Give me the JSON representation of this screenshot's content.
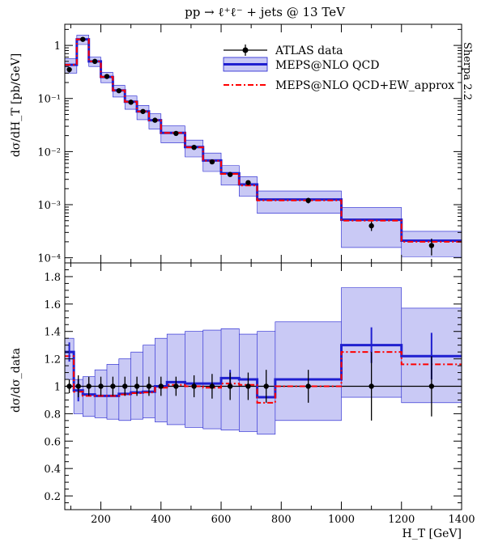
{
  "chart_data": {
    "type": "line",
    "title": "pp → ℓ⁺ℓ⁻ + jets @ 13 TeV",
    "generator_label": "Sherpa 2.2",
    "x_label": "H_T [GeV]",
    "xlim": [
      80,
      1400
    ],
    "x_ticks": [
      200,
      400,
      600,
      800,
      1000,
      1200,
      1400
    ],
    "bin_edges": [
      80,
      110,
      140,
      180,
      220,
      260,
      300,
      340,
      380,
      420,
      480,
      540,
      600,
      660,
      720,
      780,
      1000,
      1200,
      1400
    ],
    "bin_centers": [
      95,
      125,
      160,
      200,
      240,
      280,
      320,
      360,
      400,
      450,
      510,
      570,
      630,
      690,
      750,
      890,
      1100,
      1300
    ],
    "main_panel": {
      "ylabel": "dσ/dH_T [pb/GeV]",
      "y_scale": "log",
      "ylim": [
        8e-05,
        2.5
      ],
      "y_ticks": [
        "10⁻⁴",
        "10⁻³",
        "10⁻²",
        "10⁻¹",
        "1"
      ],
      "series": [
        {
          "name": "ATLAS data",
          "style": "points",
          "values": [
            0.35,
            1.3,
            0.5,
            0.26,
            0.14,
            0.085,
            0.057,
            0.039,
            0.022,
            0.012,
            0.0064,
            0.0037,
            0.0026,
            0.0012,
            0.0004,
            0.00017
          ],
          "value_x": [
            95,
            140,
            180,
            220,
            260,
            300,
            340,
            380,
            450,
            510,
            570,
            630,
            690,
            890,
            1100,
            1300
          ],
          "errors_rel": [
            0.12,
            0.08,
            0.08,
            0.08,
            0.08,
            0.08,
            0.08,
            0.08,
            0.08,
            0.08,
            0.08,
            0.08,
            0.1,
            0.12,
            0.2,
            0.35
          ]
        },
        {
          "name": "MEPS@NLO QCD",
          "style": "step",
          "color": "#1f1fd0",
          "band_color": "#c9c9f5",
          "values": [
            0.43,
            1.3,
            0.5,
            0.255,
            0.142,
            0.087,
            0.057,
            0.039,
            0.0225,
            0.0122,
            0.0068,
            0.0039,
            0.0024,
            0.00125,
            0.00052,
            0.00021
          ],
          "edges": [
            80,
            120,
            160,
            200,
            240,
            280,
            320,
            360,
            400,
            480,
            540,
            600,
            660,
            720,
            1000,
            1200,
            1400
          ],
          "band_rel": [
            0.3,
            0.2,
            0.2,
            0.22,
            0.25,
            0.28,
            0.3,
            0.32,
            0.35,
            0.35,
            0.38,
            0.4,
            0.4,
            0.45,
            0.7,
            0.5
          ]
        },
        {
          "name": "MEPS@NLO QCD+EW_approx",
          "style": "step-dashdot",
          "color": "#ff0000",
          "values": [
            0.43,
            1.3,
            0.5,
            0.255,
            0.142,
            0.087,
            0.057,
            0.039,
            0.0225,
            0.012,
            0.0067,
            0.0038,
            0.0023,
            0.0012,
            0.0005,
            0.0002
          ],
          "edges": [
            80,
            120,
            160,
            200,
            240,
            280,
            320,
            360,
            400,
            480,
            540,
            600,
            660,
            720,
            1000,
            1200,
            1400
          ]
        }
      ]
    },
    "ratio_panel": {
      "ylabel": "dσ/dσ_data",
      "ylim": [
        0.1,
        1.9
      ],
      "y_ticks": [
        "0.2",
        "0.4",
        "0.6",
        "0.8",
        "1",
        "1.2",
        "1.4",
        "1.6",
        "1.8"
      ],
      "data_points": {
        "x": [
          95,
          125,
          160,
          200,
          240,
          280,
          320,
          360,
          400,
          450,
          510,
          570,
          630,
          690,
          750,
          890,
          1100,
          1300
        ],
        "value": [
          1,
          1,
          1,
          1,
          1,
          1,
          1,
          1,
          1,
          1,
          1,
          1,
          1,
          1,
          1,
          1,
          1,
          1
        ],
        "err": [
          0.05,
          0.08,
          0.07,
          0.07,
          0.07,
          0.07,
          0.07,
          0.07,
          0.07,
          0.07,
          0.08,
          0.09,
          0.1,
          0.1,
          0.12,
          0.12,
          0.25,
          0.22
        ]
      },
      "qcd_ratio": {
        "edges": [
          80,
          110,
          140,
          180,
          220,
          260,
          300,
          340,
          380,
          420,
          480,
          540,
          600,
          660,
          720,
          780,
          1000,
          1200,
          1400
        ],
        "values": [
          1.25,
          0.97,
          0.94,
          0.93,
          0.93,
          0.945,
          0.955,
          0.96,
          1.0,
          1.03,
          1.02,
          1.02,
          1.06,
          1.05,
          0.92,
          1.05,
          1.3,
          1.22
        ],
        "band_lo": [
          1.05,
          0.8,
          0.78,
          0.77,
          0.76,
          0.75,
          0.76,
          0.77,
          0.74,
          0.72,
          0.7,
          0.69,
          0.68,
          0.67,
          0.65,
          0.75,
          0.92,
          0.88
        ],
        "band_hi": [
          1.35,
          1.05,
          1.07,
          1.12,
          1.16,
          1.2,
          1.25,
          1.3,
          1.35,
          1.38,
          1.4,
          1.41,
          1.42,
          1.38,
          1.4,
          1.47,
          1.72,
          1.57
        ]
      },
      "qcd_ew_ratio": {
        "edges": [
          80,
          110,
          140,
          180,
          220,
          260,
          300,
          340,
          380,
          420,
          480,
          540,
          600,
          660,
          720,
          780,
          1000,
          1200,
          1400
        ],
        "values": [
          1.22,
          0.96,
          0.93,
          0.93,
          0.93,
          0.94,
          0.95,
          0.955,
          0.99,
          1.01,
          1.0,
          0.99,
          1.02,
          1.01,
          0.88,
          1.0,
          1.25,
          1.16
        ]
      },
      "qcd_errbars": {
        "x": [
          95,
          125,
          630,
          1100,
          1300
        ],
        "value": [
          1.25,
          0.97,
          1.06,
          1.3,
          1.22
        ],
        "err": [
          0.07,
          0.08,
          0.06,
          0.13,
          0.17
        ]
      }
    }
  }
}
